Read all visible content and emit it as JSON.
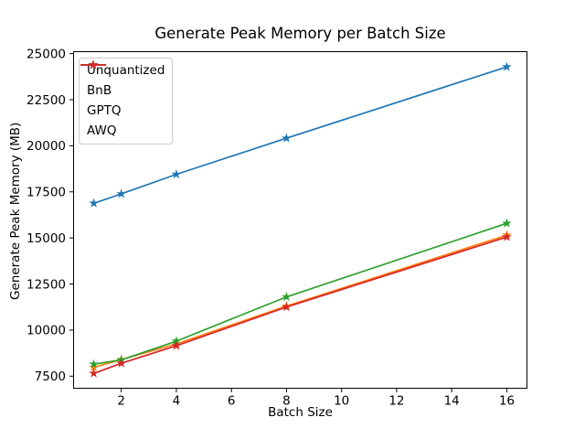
{
  "figure": {
    "background": "#ffffff"
  },
  "chart_data": {
    "type": "line",
    "title": "Generate Peak Memory per Batch Size",
    "xlabel": "Batch Size",
    "ylabel": "Generate Peak Memory (MB)",
    "x": [
      1,
      2,
      4,
      8,
      16
    ],
    "series": [
      {
        "name": "Unquantized",
        "color": "#1f77b4",
        "values": [
          16880,
          17390,
          18450,
          20410,
          24280
        ]
      },
      {
        "name": "BnB",
        "color": "#ff7f0e",
        "values": [
          7980,
          8400,
          9250,
          11300,
          15150
        ]
      },
      {
        "name": "GPTQ",
        "color": "#2ca02c",
        "values": [
          8150,
          8380,
          9400,
          11800,
          15790
        ]
      },
      {
        "name": "AWQ",
        "color": "#d62728",
        "values": [
          7650,
          8200,
          9150,
          11250,
          15050
        ]
      }
    ],
    "xticks": [
      2,
      4,
      6,
      8,
      10,
      12,
      14,
      16
    ],
    "yticks": [
      7500,
      10000,
      12500,
      15000,
      17500,
      20000,
      22500,
      25000
    ],
    "xlim": [
      0.25,
      16.75
    ],
    "ylim": [
      6820,
      25130
    ],
    "grid": false,
    "marker": "star",
    "legend_position": "upper-left",
    "axis_color": "#000000",
    "legend_border_color": "#cccccc"
  }
}
